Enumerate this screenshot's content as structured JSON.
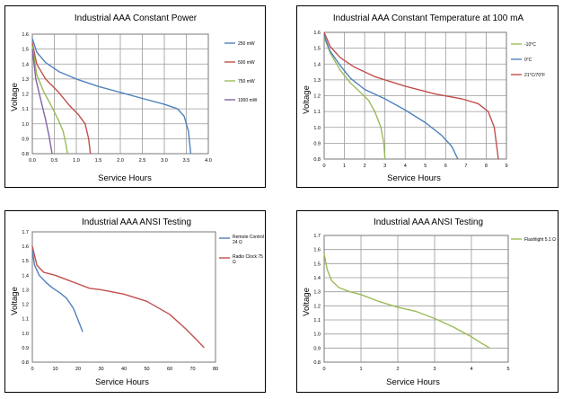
{
  "chart_data": [
    {
      "type": "line",
      "title": "Industrial AAA Constant Power",
      "xlabel": "Service Hours",
      "ylabel": "Voltage",
      "xlim": [
        0,
        4
      ],
      "ylim": [
        0.8,
        1.6
      ],
      "xticks": [
        "0.0",
        "0.5",
        "1.0",
        "1.5",
        "2.0",
        "2.5",
        "3.0",
        "3.5",
        "4.0"
      ],
      "yticks": [
        "0.8",
        "0.9",
        "1.0",
        "1.1",
        "1.2",
        "1.3",
        "1.4",
        "1.5",
        "1.6"
      ],
      "grid": true,
      "legend": "right",
      "series": [
        {
          "name": "250 mW",
          "color": "#4f81bd",
          "points": [
            [
              0,
              1.57
            ],
            [
              0.1,
              1.48
            ],
            [
              0.3,
              1.41
            ],
            [
              0.6,
              1.35
            ],
            [
              1.0,
              1.3
            ],
            [
              1.5,
              1.25
            ],
            [
              2.0,
              1.21
            ],
            [
              2.5,
              1.17
            ],
            [
              3.0,
              1.13
            ],
            [
              3.3,
              1.1
            ],
            [
              3.45,
              1.05
            ],
            [
              3.55,
              0.95
            ],
            [
              3.6,
              0.8
            ]
          ]
        },
        {
          "name": "500 mW",
          "color": "#c0504d",
          "points": [
            [
              0,
              1.54
            ],
            [
              0.1,
              1.4
            ],
            [
              0.3,
              1.3
            ],
            [
              0.6,
              1.21
            ],
            [
              0.85,
              1.12
            ],
            [
              1.05,
              1.06
            ],
            [
              1.2,
              1.0
            ],
            [
              1.28,
              0.9
            ],
            [
              1.32,
              0.8
            ]
          ]
        },
        {
          "name": "750 mW",
          "color": "#9bbb59",
          "points": [
            [
              0,
              1.52
            ],
            [
              0.1,
              1.33
            ],
            [
              0.25,
              1.22
            ],
            [
              0.45,
              1.11
            ],
            [
              0.6,
              1.02
            ],
            [
              0.7,
              0.95
            ],
            [
              0.76,
              0.87
            ],
            [
              0.8,
              0.8
            ]
          ]
        },
        {
          "name": "1000 mW",
          "color": "#8064a2",
          "points": [
            [
              0,
              1.5
            ],
            [
              0.08,
              1.3
            ],
            [
              0.2,
              1.15
            ],
            [
              0.3,
              1.03
            ],
            [
              0.38,
              0.92
            ],
            [
              0.45,
              0.8
            ]
          ]
        }
      ]
    },
    {
      "type": "line",
      "title": "Industrial AAA Constant Temperature at 100 mA",
      "xlabel": "Service Hours",
      "ylabel": "Voltage",
      "xlim": [
        0,
        9
      ],
      "ylim": [
        0.8,
        1.6
      ],
      "xticks": [
        "0",
        "1",
        "2",
        "3",
        "4",
        "5",
        "6",
        "7",
        "8",
        "9"
      ],
      "yticks": [
        "0.8",
        "0.9",
        "1.0",
        "1.1",
        "1.2",
        "1.3",
        "1.4",
        "1.5",
        "1.6"
      ],
      "grid": true,
      "legend": "right",
      "series": [
        {
          "name": "-10°C",
          "color": "#9bbb59",
          "points": [
            [
              0,
              1.57
            ],
            [
              0.3,
              1.47
            ],
            [
              0.8,
              1.36
            ],
            [
              1.3,
              1.28
            ],
            [
              1.8,
              1.22
            ],
            [
              2.2,
              1.17
            ],
            [
              2.5,
              1.1
            ],
            [
              2.8,
              1.0
            ],
            [
              2.95,
              0.9
            ],
            [
              3.0,
              0.8
            ]
          ]
        },
        {
          "name": "0°C",
          "color": "#4f81bd",
          "points": [
            [
              0,
              1.58
            ],
            [
              0.3,
              1.48
            ],
            [
              0.8,
              1.39
            ],
            [
              1.3,
              1.31
            ],
            [
              2,
              1.24
            ],
            [
              3,
              1.18
            ],
            [
              4,
              1.11
            ],
            [
              5,
              1.03
            ],
            [
              5.8,
              0.95
            ],
            [
              6.3,
              0.88
            ],
            [
              6.6,
              0.8
            ]
          ]
        },
        {
          "name": "21°C/70°F",
          "color": "#c0504d",
          "points": [
            [
              0,
              1.6
            ],
            [
              0.3,
              1.51
            ],
            [
              0.8,
              1.44
            ],
            [
              1.5,
              1.38
            ],
            [
              2.5,
              1.32
            ],
            [
              4,
              1.26
            ],
            [
              5.5,
              1.21
            ],
            [
              6.8,
              1.18
            ],
            [
              7.6,
              1.15
            ],
            [
              8.1,
              1.1
            ],
            [
              8.4,
              1.0
            ],
            [
              8.6,
              0.8
            ]
          ]
        }
      ]
    },
    {
      "type": "line",
      "title": "Industrial AAA ANSI Testing",
      "xlabel": "Service Hours",
      "ylabel": "Voltage",
      "xlim": [
        0,
        80
      ],
      "ylim": [
        0.8,
        1.7
      ],
      "xticks": [
        "0",
        "10",
        "20",
        "30",
        "40",
        "50",
        "60",
        "70",
        "80"
      ],
      "yticks": [
        "0.8",
        "0.9",
        "1.0",
        "1.1",
        "1.2",
        "1.3",
        "1.4",
        "1.5",
        "1.6",
        "1.7"
      ],
      "grid": false,
      "legend": "right",
      "series": [
        {
          "name": "Remote Control 24 Ω",
          "color": "#4f81bd",
          "points": [
            [
              0,
              1.57
            ],
            [
              1,
              1.47
            ],
            [
              3,
              1.4
            ],
            [
              6,
              1.35
            ],
            [
              9,
              1.31
            ],
            [
              12,
              1.28
            ],
            [
              15,
              1.24
            ],
            [
              18,
              1.17
            ],
            [
              20,
              1.09
            ],
            [
              22,
              1.01
            ]
          ]
        },
        {
          "name": "Radio Clock 75 Ω",
          "color": "#c0504d",
          "points": [
            [
              0,
              1.6
            ],
            [
              2,
              1.47
            ],
            [
              5,
              1.42
            ],
            [
              10,
              1.4
            ],
            [
              15,
              1.37
            ],
            [
              20,
              1.34
            ],
            [
              25,
              1.31
            ],
            [
              30,
              1.3
            ],
            [
              40,
              1.27
            ],
            [
              50,
              1.22
            ],
            [
              60,
              1.13
            ],
            [
              67,
              1.03
            ],
            [
              72,
              0.95
            ],
            [
              75,
              0.9
            ]
          ]
        }
      ]
    },
    {
      "type": "line",
      "title": "Industrial AAA ANSI Testing",
      "xlabel": "Service Hours",
      "ylabel": "Voltage",
      "xlim": [
        0,
        5
      ],
      "ylim": [
        0.8,
        1.7
      ],
      "xticks": [
        "0",
        "1",
        "2",
        "3",
        "4",
        "5"
      ],
      "yticks": [
        "0.8",
        "0.9",
        "1.0",
        "1.1",
        "1.2",
        "1.3",
        "1.4",
        "1.5",
        "1.6",
        "1.7"
      ],
      "grid": true,
      "legend": "right",
      "series": [
        {
          "name": "Flashlight 5.1 Ω",
          "color": "#9bbb59",
          "points": [
            [
              0,
              1.57
            ],
            [
              0.08,
              1.46
            ],
            [
              0.2,
              1.38
            ],
            [
              0.4,
              1.33
            ],
            [
              0.7,
              1.3
            ],
            [
              1,
              1.28
            ],
            [
              1.5,
              1.23
            ],
            [
              2,
              1.19
            ],
            [
              2.5,
              1.16
            ],
            [
              3,
              1.11
            ],
            [
              3.5,
              1.05
            ],
            [
              4,
              0.98
            ],
            [
              4.3,
              0.93
            ],
            [
              4.5,
              0.9
            ]
          ]
        }
      ]
    }
  ]
}
